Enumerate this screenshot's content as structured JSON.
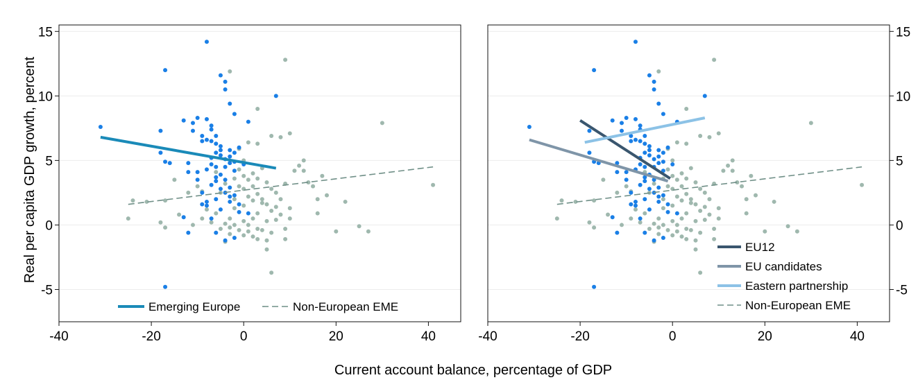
{
  "colors": {
    "emerging_europe_points": "#1a7fe6",
    "non_european_points": "#9fb8ae",
    "emerging_europe_line": "#1a8ab8",
    "non_european_line": "#6f8f87",
    "eu12_line": "#3a566e",
    "eu_candidates_line": "#7f95a8",
    "eastern_partnership_line": "#8cc2e6",
    "panel_border": "#111111",
    "grid": "#ececec"
  },
  "chart_data": {
    "type": "scatter",
    "xlabel": "Current account balance, percentage of GDP",
    "ylabel": "Real per capita GDP growth, percent",
    "xlim": [
      -40,
      47
    ],
    "ylim": [
      -7.5,
      15.5
    ],
    "x_ticks": [
      -40,
      -20,
      0,
      20,
      40
    ],
    "y_ticks": [
      -5,
      0,
      5,
      10,
      15
    ],
    "x_tick_labels": [
      "-40",
      "-20",
      "0",
      "20",
      "40"
    ],
    "y_tick_labels": [
      "-5",
      "0",
      "5",
      "10",
      "15"
    ],
    "grid": true,
    "panels": [
      {
        "legend_position": "bottom",
        "lines": [
          {
            "name": "Emerging Europe",
            "style": "solid",
            "color_key": "emerging_europe_line",
            "x": [
              -31,
              7
            ],
            "y": [
              6.8,
              4.4
            ]
          },
          {
            "name": "Non-European EME",
            "style": "dashed",
            "color_key": "non_european_line",
            "x": [
              -25,
              41
            ],
            "y": [
              1.6,
              4.5
            ]
          }
        ]
      },
      {
        "legend_position": "bottom-right",
        "lines": [
          {
            "name": "EU12",
            "style": "solid",
            "color_key": "eu12_line",
            "x": [
              -20,
              -0.5
            ],
            "y": [
              8.1,
              3.6
            ]
          },
          {
            "name": "EU candidates",
            "style": "solid",
            "color_key": "eu_candidates_line",
            "x": [
              -31,
              -1
            ],
            "y": [
              6.6,
              3.4
            ]
          },
          {
            "name": "Eastern partnership",
            "style": "solid",
            "color_key": "eastern_partnership_line",
            "x": [
              -19,
              7
            ],
            "y": [
              6.4,
              8.3
            ]
          },
          {
            "name": "Non-European EME",
            "style": "dashed",
            "color_key": "non_european_line",
            "x": [
              -25,
              41
            ],
            "y": [
              1.6,
              4.5
            ]
          }
        ]
      }
    ],
    "series": [
      {
        "group": "Emerging Europe",
        "color_key": "emerging_europe_points",
        "points": [
          [
            -31,
            7.6
          ],
          [
            -17,
            12
          ],
          [
            -8,
            14.2
          ],
          [
            -5,
            11.6
          ],
          [
            -4,
            11.1
          ],
          [
            -4,
            10.5
          ],
          [
            -3,
            9.4
          ],
          [
            1,
            8.0
          ],
          [
            7,
            10
          ],
          [
            -2,
            8.6
          ],
          [
            -17,
            4.9
          ],
          [
            -16,
            4.8
          ],
          [
            -18,
            5.6
          ],
          [
            -18,
            7.3
          ],
          [
            -13,
            8.1
          ],
          [
            -11,
            7.9
          ],
          [
            -11,
            7.3
          ],
          [
            -10,
            8.3
          ],
          [
            -9,
            6.5
          ],
          [
            -9,
            6.9
          ],
          [
            -8,
            8.2
          ],
          [
            -7,
            7.7
          ],
          [
            -7,
            7.4
          ],
          [
            -6,
            6.9
          ],
          [
            -8,
            6.6
          ],
          [
            -7,
            6.5
          ],
          [
            -6,
            6.3
          ],
          [
            -5,
            6.1
          ],
          [
            -5,
            5.8
          ],
          [
            -6,
            5.6
          ],
          [
            -7,
            5.2
          ],
          [
            -5,
            5.4
          ],
          [
            -4,
            5.1
          ],
          [
            -3,
            5.8
          ],
          [
            -3,
            5.3
          ],
          [
            -2,
            4.9
          ],
          [
            -2,
            5.6
          ],
          [
            -1,
            6.0
          ],
          [
            -3,
            4.8
          ],
          [
            -4,
            4.5
          ],
          [
            -12,
            4.8
          ],
          [
            -12,
            4.1
          ],
          [
            -10,
            4.1
          ],
          [
            -8,
            4.3
          ],
          [
            -7,
            4.7
          ],
          [
            -6,
            4.5
          ],
          [
            -5,
            3.9
          ],
          [
            -4,
            3.5
          ],
          [
            -6,
            3.4
          ],
          [
            -7,
            3.1
          ],
          [
            -5,
            2.8
          ],
          [
            -4,
            2.5
          ],
          [
            -3,
            2.9
          ],
          [
            -3,
            2.2
          ],
          [
            -2,
            2.3
          ],
          [
            -1,
            1.6
          ],
          [
            -6,
            2.0
          ],
          [
            -8,
            1.8
          ],
          [
            -8,
            1.5
          ],
          [
            -5,
            1.2
          ],
          [
            -3,
            1.8
          ],
          [
            -13,
            0.6
          ],
          [
            -12,
            -0.6
          ],
          [
            -9,
            1.6
          ],
          [
            -7,
            0.5
          ],
          [
            -6,
            -0.6
          ],
          [
            -2,
            -1.0
          ],
          [
            -4,
            -1.2
          ],
          [
            -1,
            1.0
          ],
          [
            1,
            0.9
          ],
          [
            -17,
            -4.8
          ],
          [
            -6,
            3.7
          ],
          [
            -2,
            4.2
          ],
          [
            0,
            4.7
          ],
          [
            -9,
            2.5
          ],
          [
            -10,
            3.5
          ]
        ]
      },
      {
        "group": "Non-European EME",
        "color_key": "non_european_points",
        "points": [
          [
            -25,
            0.5
          ],
          [
            -24,
            1.9
          ],
          [
            -21,
            1.8
          ],
          [
            -17,
            1.9
          ],
          [
            -18,
            0.2
          ],
          [
            -17,
            -0.2
          ],
          [
            -15,
            3.5
          ],
          [
            -14,
            0.8
          ],
          [
            -12,
            2.5
          ],
          [
            -11,
            0.0
          ],
          [
            -10,
            3.0
          ],
          [
            -9,
            2.6
          ],
          [
            -9,
            0.5
          ],
          [
            -8,
            1.2
          ],
          [
            -7,
            0.2
          ],
          [
            -6,
            0.9
          ],
          [
            -5,
            -0.3
          ],
          [
            -4,
            0.1
          ],
          [
            -3,
            0.5
          ],
          [
            -3,
            -0.7
          ],
          [
            -2,
            1.3
          ],
          [
            -2,
            0.0
          ],
          [
            -1,
            -0.4
          ],
          [
            0,
            0.3
          ],
          [
            0,
            -0.8
          ],
          [
            1,
            0.0
          ],
          [
            1,
            -0.5
          ],
          [
            2,
            0.5
          ],
          [
            2,
            -0.9
          ],
          [
            3,
            -0.3
          ],
          [
            3,
            -1.1
          ],
          [
            4,
            -0.4
          ],
          [
            5,
            0.3
          ],
          [
            5,
            -1.2
          ],
          [
            6,
            -0.6
          ],
          [
            7,
            0.4
          ],
          [
            8,
            0.8
          ],
          [
            9,
            -0.3
          ],
          [
            9,
            -1.1
          ],
          [
            10,
            0.5
          ],
          [
            -1,
            4.3
          ],
          [
            0,
            3.8
          ],
          [
            0,
            2.8
          ],
          [
            1,
            3.5
          ],
          [
            1,
            2.2
          ],
          [
            2,
            4.0
          ],
          [
            2,
            3.0
          ],
          [
            3,
            3.6
          ],
          [
            3,
            2.4
          ],
          [
            4,
            4.4
          ],
          [
            4,
            2.0
          ],
          [
            5,
            3.3
          ],
          [
            5,
            1.6
          ],
          [
            6,
            2.8
          ],
          [
            6,
            1.1
          ],
          [
            7,
            2.5
          ],
          [
            7,
            1.4
          ],
          [
            8,
            2.0
          ],
          [
            9,
            3.2
          ],
          [
            10,
            1.3
          ],
          [
            11,
            4.2
          ],
          [
            12,
            4.6
          ],
          [
            13,
            5.0
          ],
          [
            13,
            4.2
          ],
          [
            14,
            3.3
          ],
          [
            15,
            3.0
          ],
          [
            16,
            0.9
          ],
          [
            16,
            2.0
          ],
          [
            17,
            3.8
          ],
          [
            18,
            2.3
          ],
          [
            -3,
            11.9
          ],
          [
            3,
            9.0
          ],
          [
            9,
            12.8
          ],
          [
            10,
            7.1
          ],
          [
            8,
            6.8
          ],
          [
            6,
            6.9
          ],
          [
            3,
            6.3
          ],
          [
            1,
            6.4
          ],
          [
            -1,
            5.9
          ],
          [
            -2,
            3.6
          ],
          [
            22,
            1.8
          ],
          [
            25,
            -0.1
          ],
          [
            27,
            -0.5
          ],
          [
            30,
            7.9
          ],
          [
            41,
            3.1
          ],
          [
            20,
            -0.5
          ],
          [
            6,
            -3.7
          ],
          [
            5,
            -1.9
          ],
          [
            -3,
            -0.2
          ],
          [
            -4,
            -1.3
          ],
          [
            -2,
            2.0
          ],
          [
            0,
            1.5
          ],
          [
            -1,
            3.0
          ],
          [
            -4,
            3.2
          ],
          [
            -5,
            2.5
          ],
          [
            3,
            0.9
          ],
          [
            4,
            1.7
          ],
          [
            2,
            1.9
          ],
          [
            -6,
            4.1
          ],
          [
            0,
            5.0
          ]
        ]
      }
    ]
  }
}
